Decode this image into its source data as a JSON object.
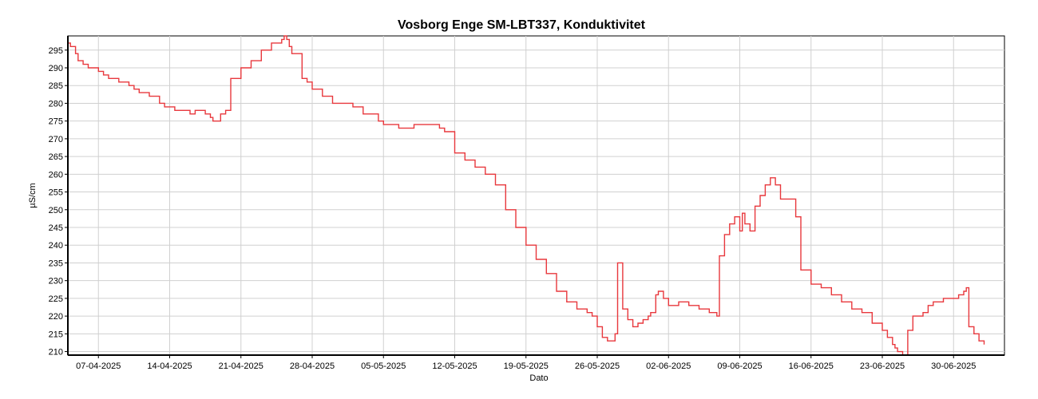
{
  "chart_data": {
    "type": "line",
    "title": "Vosborg Enge SM-LBT337, Konduktivitet",
    "xlabel": "Dato",
    "ylabel": "µS/cm",
    "ylim": [
      209,
      299
    ],
    "xlim": [
      "2025-04-04",
      "2025-07-05"
    ],
    "x_ticks": [
      "07-04-2025",
      "14-04-2025",
      "21-04-2025",
      "28-04-2025",
      "05-05-2025",
      "12-05-2025",
      "19-05-2025",
      "26-05-2025",
      "02-06-2025",
      "09-06-2025",
      "16-06-2025",
      "23-06-2025",
      "30-06-2025"
    ],
    "y_ticks": [
      210,
      215,
      220,
      225,
      230,
      235,
      240,
      245,
      250,
      255,
      260,
      265,
      270,
      275,
      280,
      285,
      290,
      295
    ],
    "grid": true,
    "line_color": "#e8383d",
    "series": [
      {
        "x": [
          "2025-04-04",
          "2025-04-04T06",
          "2025-04-04T18",
          "2025-04-05",
          "2025-04-05T12",
          "2025-04-06",
          "2025-04-06T12",
          "2025-04-07",
          "2025-04-07T12",
          "2025-04-08",
          "2025-04-08T12",
          "2025-04-09",
          "2025-04-10",
          "2025-04-10T12",
          "2025-04-11",
          "2025-04-12",
          "2025-04-13",
          "2025-04-13T12",
          "2025-04-14",
          "2025-04-14T12",
          "2025-04-15",
          "2025-04-16",
          "2025-04-16T12",
          "2025-04-17",
          "2025-04-17T12",
          "2025-04-18",
          "2025-04-18T06",
          "2025-04-18T12",
          "2025-04-19",
          "2025-04-19T12",
          "2025-04-20",
          "2025-04-21",
          "2025-04-22",
          "2025-04-23",
          "2025-04-24",
          "2025-04-24T12",
          "2025-04-25",
          "2025-04-25T06",
          "2025-04-25T12",
          "2025-04-25T18",
          "2025-04-26",
          "2025-04-27",
          "2025-04-27T12",
          "2025-04-28",
          "2025-04-29",
          "2025-04-30",
          "2025-05-01",
          "2025-05-02",
          "2025-05-03",
          "2025-05-04",
          "2025-05-04T12",
          "2025-05-05",
          "2025-05-06",
          "2025-05-06T12",
          "2025-05-07",
          "2025-05-08",
          "2025-05-09",
          "2025-05-10",
          "2025-05-10T12",
          "2025-05-11",
          "2025-05-11T06",
          "2025-05-12",
          "2025-05-13",
          "2025-05-14",
          "2025-05-15",
          "2025-05-16",
          "2025-05-17",
          "2025-05-18",
          "2025-05-19",
          "2025-05-20",
          "2025-05-21",
          "2025-05-22",
          "2025-05-23",
          "2025-05-24",
          "2025-05-25",
          "2025-05-25T12",
          "2025-05-26",
          "2025-05-26T12",
          "2025-05-27",
          "2025-05-27T06",
          "2025-05-27T12",
          "2025-05-27T18",
          "2025-05-28",
          "2025-05-28T12",
          "2025-05-29",
          "2025-05-29T12",
          "2025-05-30",
          "2025-05-30T12",
          "2025-05-31",
          "2025-05-31T06",
          "2025-05-31T18",
          "2025-06-01",
          "2025-06-01T12",
          "2025-06-02",
          "2025-06-03",
          "2025-06-04",
          "2025-06-05",
          "2025-06-06",
          "2025-06-06T12",
          "2025-06-06T18",
          "2025-06-07",
          "2025-06-07T12",
          "2025-06-08",
          "2025-06-08T12",
          "2025-06-09",
          "2025-06-09T06",
          "2025-06-09T12",
          "2025-06-10",
          "2025-06-10T12",
          "2025-06-11",
          "2025-06-11T12",
          "2025-06-12",
          "2025-06-12T12",
          "2025-06-13",
          "2025-06-13T12",
          "2025-06-14",
          "2025-06-14T06",
          "2025-06-14T12",
          "2025-06-15",
          "2025-06-16",
          "2025-06-17",
          "2025-06-18",
          "2025-06-19",
          "2025-06-20",
          "2025-06-21",
          "2025-06-22",
          "2025-06-23",
          "2025-06-23T12",
          "2025-06-24",
          "2025-06-24T06",
          "2025-06-24T12",
          "2025-06-25",
          "2025-06-25T12",
          "2025-06-26",
          "2025-06-27",
          "2025-06-27T12",
          "2025-06-28",
          "2025-06-29",
          "2025-06-30",
          "2025-06-30T12",
          "2025-07-01",
          "2025-07-01T06",
          "2025-07-01T12",
          "2025-07-02",
          "2025-07-02T12",
          "2025-07-03"
        ],
        "values": [
          297,
          296,
          294,
          292,
          291,
          290,
          290,
          289,
          288,
          287,
          287,
          286,
          285,
          284,
          283,
          282,
          280,
          279,
          279,
          278,
          278,
          277,
          278,
          278,
          277,
          276,
          275,
          275,
          277,
          278,
          287,
          290,
          292,
          295,
          297,
          297,
          298,
          299,
          298,
          296,
          294,
          287,
          286,
          284,
          282,
          280,
          280,
          279,
          277,
          277,
          275,
          274,
          274,
          273,
          273,
          274,
          274,
          274,
          273,
          272,
          272,
          266,
          264,
          262,
          260,
          257,
          250,
          245,
          240,
          236,
          232,
          227,
          224,
          222,
          221,
          220,
          217,
          214,
          213,
          213,
          213,
          215,
          235,
          222,
          219,
          217,
          218,
          219,
          220,
          221,
          226,
          227,
          225,
          223,
          224,
          223,
          222,
          221,
          221,
          220,
          237,
          243,
          246,
          248,
          244,
          249,
          246,
          244,
          251,
          254,
          257,
          259,
          257,
          253,
          253,
          253,
          253,
          248,
          233,
          229,
          228,
          226,
          224,
          222,
          221,
          218,
          216,
          214,
          212,
          211,
          210,
          209,
          216,
          220,
          221,
          223,
          224,
          225,
          225,
          226,
          227,
          228,
          217,
          215,
          213,
          212
        ]
      }
    ]
  }
}
